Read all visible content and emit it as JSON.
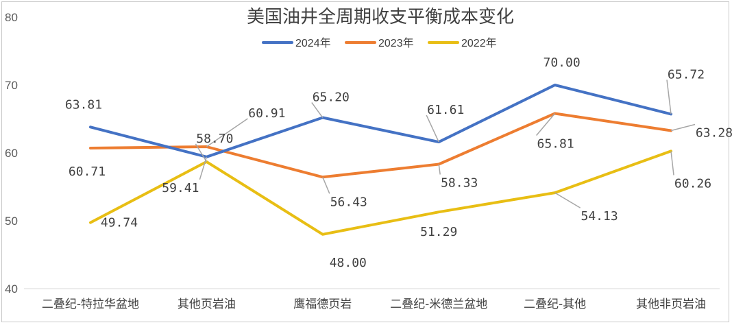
{
  "chart_data": {
    "type": "line",
    "title": "美国油井全周期收支平衡成本变化",
    "xlabel": "",
    "ylabel": "",
    "categories": [
      "二叠纪-特拉华盆地",
      "其他页岩油",
      "鹰福德页岩",
      "二叠纪-米德兰盆地",
      "二叠纪-其他",
      "其他非页岩油"
    ],
    "ylim": [
      40,
      80
    ],
    "yticks": [
      "40",
      "50",
      "60",
      "70",
      "80"
    ],
    "grid": false,
    "legend_position": "top",
    "series": [
      {
        "name": "2024年",
        "color": "#4472C4",
        "values": [
          63.81,
          59.41,
          65.2,
          61.61,
          70.0,
          65.72
        ],
        "labels": [
          "63.81",
          "59.41",
          "65.20",
          "61.61",
          "70.00",
          "65.72"
        ]
      },
      {
        "name": "2023年",
        "color": "#ED7D31",
        "values": [
          60.71,
          60.91,
          56.43,
          58.33,
          65.81,
          63.28
        ],
        "labels": [
          "60.71",
          "60.91",
          "56.43",
          "58.33",
          "65.81",
          "63.28"
        ]
      },
      {
        "name": "2022年",
        "color": "#E8BE14",
        "values": [
          49.74,
          58.7,
          48.0,
          51.29,
          54.13,
          60.26
        ],
        "labels": [
          "49.74",
          "58.70",
          "48.00",
          "51.29",
          "54.13",
          "60.26"
        ]
      }
    ]
  }
}
